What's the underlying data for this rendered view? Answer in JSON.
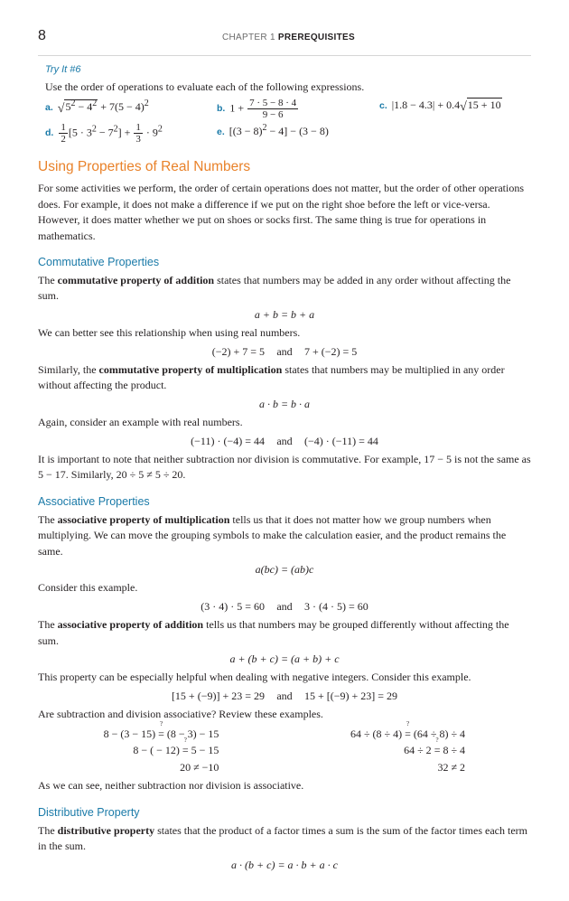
{
  "pageNumber": "8",
  "chapterHeader": {
    "light": "CHAPTER 1  ",
    "bold": "PREREQUISITES"
  },
  "tryit": {
    "title": "Try It #6",
    "instruction": "Use the order of operations to evaluate each of the following expressions."
  },
  "section": {
    "h2": "Using Properties of Real Numbers",
    "intro": "For some activities we perform, the order of certain operations does not matter, but the order of other operations does. For example, it does not make a difference if we put on the right shoe before the left or vice-versa. However, it does matter whether we put on shoes or socks first. The same thing is true for operations in mathematics."
  },
  "comm": {
    "h3": "Commutative Properties",
    "addP1a": "The ",
    "addBold": "commutative property of addition",
    "addP1b": " states that numbers may be added in any order without affecting the sum.",
    "addFormula": "a + b = b + a",
    "p2": "We can better see this relationship when using real numbers.",
    "exL": "(−2) + 7 = 5",
    "exR": "7 + (−2) = 5",
    "multP1a": "Similarly, the ",
    "multBold": "commutative property of multiplication",
    "multP1b": " states that numbers may be multiplied in any order without affecting the product.",
    "multFormula": "a · b = b · a",
    "p4": "Again, consider an example with real numbers.",
    "ex2L": "(−11) · (−4) = 44",
    "ex2R": "(−4) · (−11) = 44",
    "note": "It is important to note that neither subtraction nor division is commutative. For example, 17 − 5 is not the same as 5 − 17. Similarly, 20 ÷ 5 ≠ 5 ÷ 20."
  },
  "assoc": {
    "h3": "Associative Properties",
    "multP1a": "The ",
    "multBold": "associative property of multiplication",
    "multP1b": " tells us that it does not matter how we group numbers when multiplying. We can move the grouping symbols to make the calculation easier, and the product remains the same.",
    "multFormula": "a(bc) = (ab)c",
    "p2": "Consider this example.",
    "exL": "(3 · 4) · 5 = 60",
    "exR": "3 · (4 · 5) = 60",
    "addP1a": "The ",
    "addBold": "associative property of addition",
    "addP1b": " tells us that numbers may be grouped differently without affecting the sum.",
    "addFormula": "a + (b + c) = (a + b) + c",
    "p4": "This property can be especially helpful when dealing with negative integers. Consider this example.",
    "ex2L": "[15 + (−9)] + 23 = 29",
    "ex2R": "15 + [(−9) + 23] = 29",
    "p5": "Are subtraction and division associative? Review these examples.",
    "concl": "As we can see, neither subtraction nor division is associative."
  },
  "dist": {
    "h3": "Distributive Property",
    "p1a": "The ",
    "bold": "distributive property",
    "p1b": " states that the product of a factor times a sum is the sum of the factor times each term in the sum.",
    "formula": "a · (b + c) = a · b + a · c"
  },
  "and": "and"
}
